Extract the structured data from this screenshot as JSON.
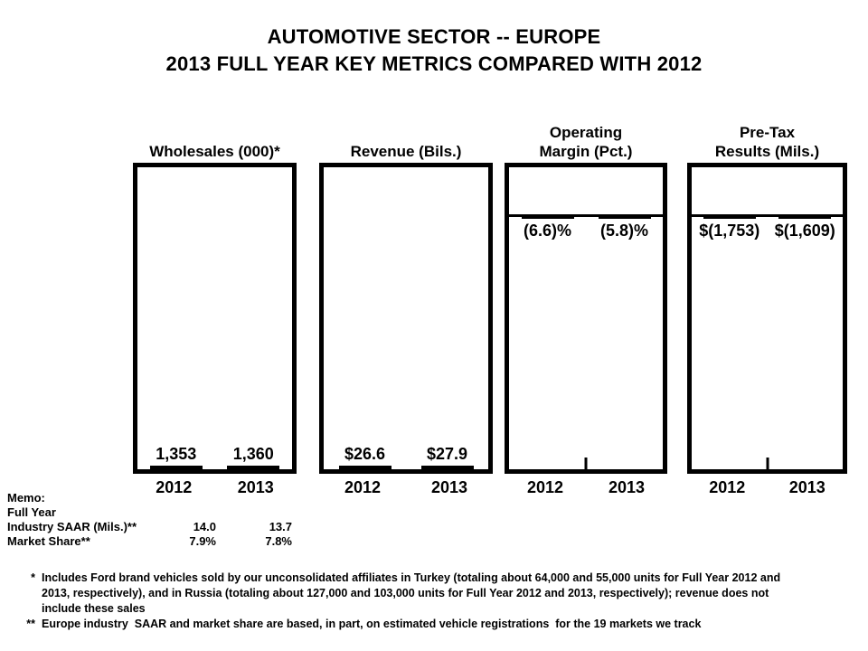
{
  "title": {
    "line1": "AUTOMOTIVE SECTOR -- EUROPE",
    "line2": "2013 FULL YEAR KEY METRICS COMPARED WITH 2012"
  },
  "chart_data": {
    "type": "bar",
    "categories": [
      "2012",
      "2013"
    ],
    "panels": [
      {
        "title": "Wholesales (000)*",
        "direction": "up",
        "color": "#FFFF00",
        "values": [
          1353,
          1360
        ],
        "value_labels": [
          "1,353",
          "1,360"
        ],
        "axis_span": 1570
      },
      {
        "title": "Revenue (Bils.)",
        "direction": "up",
        "color": "#00DF00",
        "values": [
          26.6,
          27.9
        ],
        "value_labels": [
          "$26.6",
          "$27.9"
        ],
        "axis_span": 31.0
      },
      {
        "title": "Operating\nMargin (Pct.)",
        "direction": "down",
        "color": "#000000",
        "values": [
          -6.6,
          -5.8
        ],
        "value_labels": [
          "(6.6)%",
          "(5.8)%"
        ],
        "axis_span": 9.6
      },
      {
        "title": "Pre-Tax\nResults (Mils.)",
        "direction": "down",
        "color": "#0000FF",
        "values": [
          -1753,
          -1609
        ],
        "value_labels": [
          "$(1,753)",
          "$(1,609)"
        ],
        "axis_span": 2570
      }
    ],
    "grid": false,
    "legend": false
  },
  "memo": {
    "title": "Memo:",
    "subtitle": "Full Year",
    "rows": [
      {
        "label": "Industry SAAR (Mils.)**",
        "v2012": "14.0",
        "v2013": "13.7"
      },
      {
        "label": "Market Share**",
        "v2012": "7.9%",
        "v2013": "7.8%"
      }
    ]
  },
  "footnotes": [
    {
      "marker": "*",
      "text": "Includes Ford brand vehicles sold by our unconsolidated affiliates in Turkey (totaling about 64,000 and 55,000 units for Full Year 2012 and 2013, respectively), and in Russia (totaling about 127,000 and 103,000 units for Full Year 2012 and 2013, respectively); revenue does not include these sales"
    },
    {
      "marker": "**",
      "text": "Europe industry  SAAR and market share are based, in part, on estimated vehicle registrations  for the 19 markets we track"
    }
  ]
}
